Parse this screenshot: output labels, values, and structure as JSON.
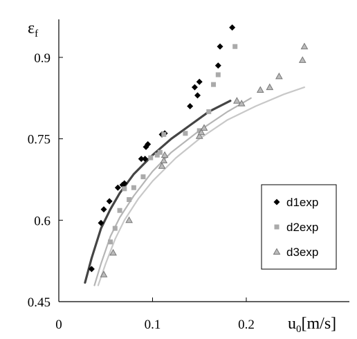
{
  "chart_data": {
    "type": "scatter",
    "title": "",
    "xlabel": "u0[m/s]",
    "xlabel_parts": {
      "base": "u",
      "sub": "0",
      "rest": "[m/s]"
    },
    "ylabel": "εf",
    "ylabel_parts": {
      "base": "ε",
      "sub": "f"
    },
    "xlim": [
      0,
      0.31
    ],
    "ylim": [
      0.45,
      0.97
    ],
    "xticks": [
      0,
      0.1,
      0.2
    ],
    "xtick_labels": [
      "0",
      "0.1",
      "0.2"
    ],
    "yticks": [
      0.45,
      0.6,
      0.75,
      0.9
    ],
    "ytick_labels": [
      "0.45",
      "0.6",
      "0.75",
      "0.9"
    ],
    "grid": false,
    "legend_position": "center-right",
    "series": [
      {
        "name": "d1exp",
        "marker": "diamond",
        "color": "#000000",
        "points": [
          [
            0.035,
            0.51
          ],
          [
            0.045,
            0.595
          ],
          [
            0.048,
            0.62
          ],
          [
            0.054,
            0.635
          ],
          [
            0.063,
            0.66
          ],
          [
            0.068,
            0.665
          ],
          [
            0.07,
            0.668
          ],
          [
            0.088,
            0.713
          ],
          [
            0.092,
            0.713
          ],
          [
            0.093,
            0.735
          ],
          [
            0.095,
            0.74
          ],
          [
            0.11,
            0.758
          ],
          [
            0.113,
            0.76
          ],
          [
            0.14,
            0.81
          ],
          [
            0.145,
            0.845
          ],
          [
            0.148,
            0.83
          ],
          [
            0.15,
            0.855
          ],
          [
            0.17,
            0.885
          ],
          [
            0.172,
            0.92
          ],
          [
            0.185,
            0.955
          ]
        ]
      },
      {
        "name": "d2exp",
        "marker": "square",
        "color": "#aaaaaa",
        "points": [
          [
            0.055,
            0.56
          ],
          [
            0.06,
            0.585
          ],
          [
            0.065,
            0.618
          ],
          [
            0.07,
            0.658
          ],
          [
            0.075,
            0.638
          ],
          [
            0.08,
            0.66
          ],
          [
            0.09,
            0.68
          ],
          [
            0.098,
            0.715
          ],
          [
            0.105,
            0.72
          ],
          [
            0.108,
            0.725
          ],
          [
            0.112,
            0.758
          ],
          [
            0.135,
            0.76
          ],
          [
            0.15,
            0.765
          ],
          [
            0.16,
            0.8
          ],
          [
            0.165,
            0.85
          ],
          [
            0.17,
            0.868
          ],
          [
            0.188,
            0.92
          ]
        ]
      },
      {
        "name": "d3exp",
        "marker": "triangle",
        "color": "#999999",
        "points": [
          [
            0.048,
            0.5
          ],
          [
            0.058,
            0.54
          ],
          [
            0.075,
            0.6
          ],
          [
            0.11,
            0.7
          ],
          [
            0.112,
            0.71
          ],
          [
            0.113,
            0.72
          ],
          [
            0.15,
            0.755
          ],
          [
            0.152,
            0.762
          ],
          [
            0.155,
            0.77
          ],
          [
            0.19,
            0.82
          ],
          [
            0.195,
            0.815
          ],
          [
            0.215,
            0.84
          ],
          [
            0.225,
            0.845
          ],
          [
            0.235,
            0.865
          ],
          [
            0.26,
            0.895
          ],
          [
            0.262,
            0.92
          ]
        ]
      }
    ],
    "curves": [
      {
        "color": "#444444",
        "width": 3.2,
        "points": [
          [
            0.028,
            0.485
          ],
          [
            0.035,
            0.53
          ],
          [
            0.045,
            0.585
          ],
          [
            0.055,
            0.62
          ],
          [
            0.065,
            0.65
          ],
          [
            0.08,
            0.685
          ],
          [
            0.1,
            0.72
          ],
          [
            0.12,
            0.75
          ],
          [
            0.14,
            0.775
          ],
          [
            0.16,
            0.8
          ],
          [
            0.183,
            0.82
          ]
        ]
      },
      {
        "color": "#b5b5b5",
        "width": 2.2,
        "points": [
          [
            0.038,
            0.48
          ],
          [
            0.045,
            0.52
          ],
          [
            0.055,
            0.57
          ],
          [
            0.065,
            0.605
          ],
          [
            0.08,
            0.645
          ],
          [
            0.1,
            0.69
          ],
          [
            0.12,
            0.725
          ],
          [
            0.15,
            0.765
          ],
          [
            0.18,
            0.8
          ],
          [
            0.205,
            0.825
          ]
        ]
      },
      {
        "color": "#c8c8c8",
        "width": 2.2,
        "points": [
          [
            0.042,
            0.48
          ],
          [
            0.05,
            0.52
          ],
          [
            0.06,
            0.565
          ],
          [
            0.07,
            0.6
          ],
          [
            0.085,
            0.64
          ],
          [
            0.1,
            0.672
          ],
          [
            0.125,
            0.715
          ],
          [
            0.15,
            0.75
          ],
          [
            0.18,
            0.785
          ],
          [
            0.21,
            0.81
          ],
          [
            0.24,
            0.832
          ],
          [
            0.262,
            0.845
          ]
        ]
      }
    ]
  }
}
